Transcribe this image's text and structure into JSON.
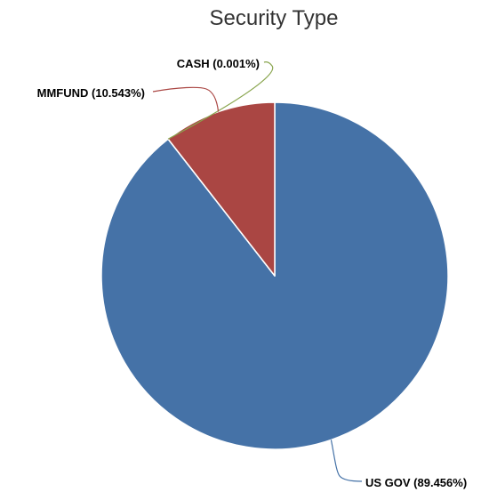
{
  "chart_data": {
    "type": "pie",
    "title": "Security Type",
    "slices": [
      {
        "label": "US GOV (89.456%)",
        "category": "US GOV",
        "value": 89.456,
        "color": "#4572a7"
      },
      {
        "label": "CASH (0.001%)",
        "category": "CASH",
        "value": 0.001,
        "color": "#89a54e"
      },
      {
        "label": "MMFUND (10.543%)",
        "category": "MMFUND",
        "value": 10.543,
        "color": "#aa4643"
      }
    ],
    "legend": "none"
  }
}
